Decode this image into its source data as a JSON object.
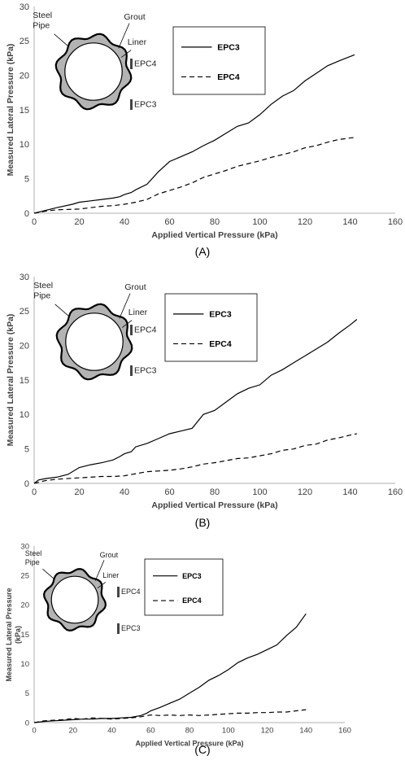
{
  "chart_data": [
    {
      "type": "line",
      "panel_label": "(A)",
      "xlabel": "Applied Vertical Pressure (kPa)",
      "ylabel": "Measured Lateral Pressure (kPa)",
      "xlim": [
        0,
        160
      ],
      "ylim": [
        0,
        30
      ],
      "xticks": [
        "0",
        "20",
        "40",
        "60",
        "80",
        "100",
        "120",
        "140",
        "160"
      ],
      "yticks": [
        "0",
        "5",
        "10",
        "15",
        "20",
        "25",
        "30"
      ],
      "grid": false,
      "legend_position": "top-right",
      "series": [
        {
          "name": "EPC3",
          "style": "solid",
          "x": [
            0,
            5,
            10,
            17,
            20,
            25,
            30,
            35,
            38,
            40,
            43,
            45,
            50,
            55,
            60,
            65,
            70,
            75,
            80,
            85,
            90,
            95,
            100,
            105,
            110,
            115,
            120,
            125,
            130,
            135,
            142
          ],
          "y": [
            0,
            0.4,
            0.8,
            1.3,
            1.6,
            1.8,
            2.0,
            2.2,
            2.4,
            2.7,
            3.0,
            3.4,
            4.2,
            6.0,
            7.5,
            8.2,
            8.9,
            9.8,
            10.6,
            11.6,
            12.6,
            13.1,
            14.3,
            15.8,
            17.0,
            17.8,
            19.2,
            20.3,
            21.4,
            22.1,
            23.0
          ]
        },
        {
          "name": "EPC4",
          "style": "dashed",
          "x": [
            0,
            5,
            10,
            20,
            25,
            30,
            35,
            40,
            45,
            50,
            55,
            60,
            65,
            70,
            75,
            80,
            85,
            90,
            95,
            100,
            105,
            110,
            115,
            120,
            125,
            130,
            135,
            142
          ],
          "y": [
            0,
            0.3,
            0.5,
            0.6,
            0.8,
            1.0,
            1.1,
            1.3,
            1.6,
            2.0,
            2.8,
            3.3,
            3.8,
            4.4,
            5.2,
            5.7,
            6.2,
            6.8,
            7.2,
            7.6,
            8.1,
            8.5,
            8.9,
            9.5,
            9.8,
            10.3,
            10.7,
            11.0
          ]
        }
      ],
      "inset": {
        "steel_pipe": "Steel\nPipe",
        "grout": "Grout",
        "liner": "Liner",
        "sensor_upper": "EPC4",
        "sensor_lower": "EPC3"
      }
    },
    {
      "type": "line",
      "panel_label": "(B)",
      "xlabel": "Applied Vertical Pressure (kPa)",
      "ylabel": "Measured Lateral Pressure (kPa)",
      "xlim": [
        0,
        160
      ],
      "ylim": [
        0,
        30
      ],
      "xticks": [
        "0",
        "20",
        "40",
        "60",
        "80",
        "100",
        "120",
        "140",
        "160"
      ],
      "yticks": [
        "0",
        "5",
        "10",
        "15",
        "20",
        "25",
        "30"
      ],
      "grid": false,
      "legend_position": "top-right",
      "series": [
        {
          "name": "EPC3",
          "style": "solid",
          "x": [
            0,
            2,
            5,
            10,
            15,
            20,
            25,
            30,
            35,
            38,
            40,
            43,
            45,
            50,
            55,
            60,
            65,
            70,
            75,
            80,
            85,
            90,
            95,
            100,
            105,
            110,
            115,
            120,
            125,
            130,
            135,
            140,
            143
          ],
          "y": [
            0,
            0.5,
            0.7,
            0.9,
            1.3,
            2.3,
            2.7,
            3.0,
            3.4,
            3.9,
            4.3,
            4.6,
            5.3,
            5.8,
            6.5,
            7.2,
            7.6,
            8.0,
            10.0,
            10.6,
            11.8,
            13.0,
            13.8,
            14.3,
            15.7,
            16.5,
            17.5,
            18.5,
            19.5,
            20.5,
            21.8,
            23.0,
            23.8
          ]
        },
        {
          "name": "EPC4",
          "style": "dashed",
          "x": [
            0,
            5,
            10,
            20,
            25,
            30,
            35,
            40,
            45,
            50,
            55,
            60,
            65,
            70,
            75,
            80,
            85,
            90,
            95,
            100,
            105,
            110,
            115,
            120,
            125,
            130,
            135,
            140,
            143
          ],
          "y": [
            0,
            0.4,
            0.6,
            0.8,
            0.9,
            1.0,
            1.0,
            1.1,
            1.4,
            1.7,
            1.8,
            1.9,
            2.1,
            2.4,
            2.8,
            3.0,
            3.3,
            3.6,
            3.7,
            4.0,
            4.3,
            4.8,
            5.0,
            5.5,
            5.7,
            6.3,
            6.6,
            7.0,
            7.2
          ]
        }
      ],
      "inset": {
        "steel_pipe": "Steel\nPipe",
        "grout": "Grout",
        "liner": "Liner",
        "sensor_upper": "EPC4",
        "sensor_lower": "EPC3"
      }
    },
    {
      "type": "line",
      "panel_label": "(C)",
      "xlabel": "Applied Vertical Pressure (kPa)",
      "ylabel": "Measured Lateral Pressure\n(kPa)",
      "xlim": [
        0,
        160
      ],
      "ylim": [
        0,
        30
      ],
      "xticks": [
        "0",
        "20",
        "40",
        "60",
        "80",
        "100",
        "120",
        "140",
        "160"
      ],
      "yticks": [
        "0",
        "5",
        "10",
        "15",
        "20",
        "25",
        "30"
      ],
      "grid": false,
      "legend_position": "top-right",
      "series": [
        {
          "name": "EPC3",
          "style": "solid",
          "x": [
            0,
            5,
            10,
            15,
            20,
            25,
            30,
            35,
            40,
            45,
            50,
            55,
            58,
            60,
            65,
            70,
            75,
            80,
            85,
            90,
            95,
            100,
            105,
            110,
            115,
            120,
            125,
            130,
            135,
            140
          ],
          "y": [
            0,
            0.2,
            0.3,
            0.4,
            0.5,
            0.6,
            0.6,
            0.7,
            0.7,
            0.8,
            0.9,
            1.2,
            1.6,
            2.0,
            2.6,
            3.3,
            4.0,
            5.0,
            6.0,
            7.2,
            8.0,
            9.0,
            10.2,
            11.0,
            11.6,
            12.4,
            13.2,
            14.8,
            16.2,
            18.5
          ]
        },
        {
          "name": "EPC4",
          "style": "dashed",
          "x": [
            0,
            5,
            10,
            15,
            20,
            25,
            30,
            35,
            40,
            45,
            50,
            55,
            60,
            65,
            70,
            75,
            80,
            85,
            90,
            95,
            100,
            105,
            110,
            115,
            120,
            125,
            130,
            135,
            140
          ],
          "y": [
            0,
            0.3,
            0.4,
            0.5,
            0.7,
            0.6,
            0.8,
            0.7,
            0.6,
            0.7,
            0.8,
            1.0,
            1.3,
            1.2,
            1.3,
            1.2,
            1.3,
            1.2,
            1.3,
            1.4,
            1.5,
            1.6,
            1.6,
            1.7,
            1.7,
            1.8,
            1.8,
            2.0,
            2.2
          ]
        }
      ],
      "inset": {
        "steel_pipe": "Steel\nPipe",
        "grout": "Grout",
        "liner": "Liner",
        "sensor_upper": "EPC4",
        "sensor_lower": "EPC3"
      }
    }
  ]
}
